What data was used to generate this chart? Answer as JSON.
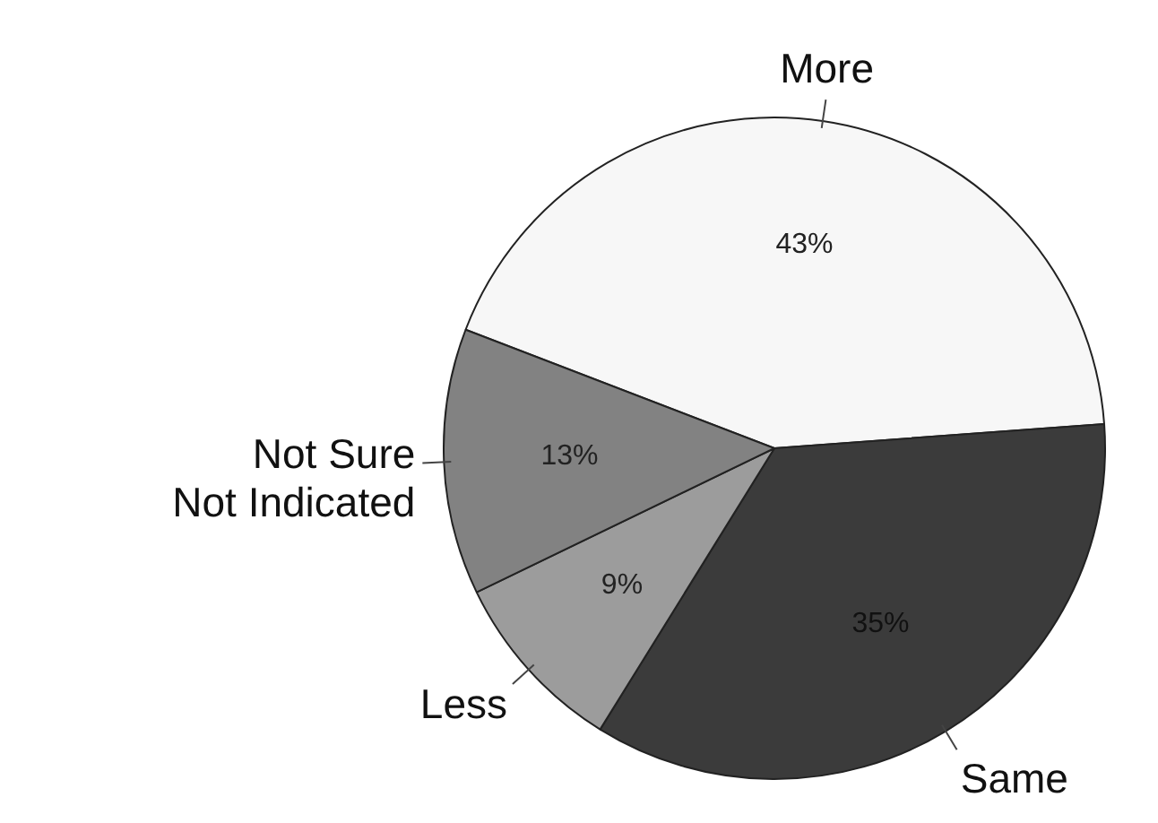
{
  "chart_data": {
    "type": "pie",
    "categories": [
      "More",
      "Same",
      "Less",
      "Not Sure\nNot Indicated"
    ],
    "values": [
      43,
      35,
      9,
      13
    ],
    "colors": [
      "#f7f7f7",
      "#3b3b3b",
      "#9c9c9c",
      "#828282"
    ],
    "value_labels": [
      "43%",
      "35%",
      "9%",
      "13%"
    ],
    "legend": false
  }
}
